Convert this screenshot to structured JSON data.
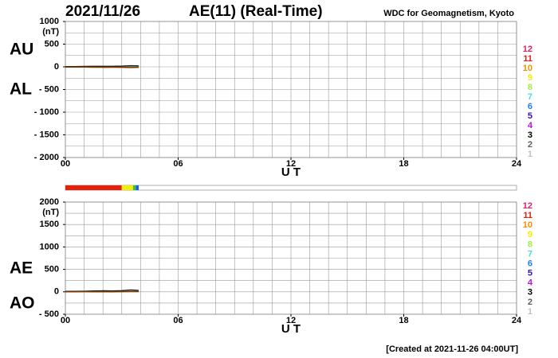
{
  "header": {
    "date": "2021/11/26",
    "title": "AE(11) (Real-Time)",
    "source": "WDC for Geomagnetism, Kyoto"
  },
  "footer": "[Created at 2021-11-26 04:00UT]",
  "coverage": {
    "xlim": [
      0,
      24
    ],
    "segments": [
      {
        "start": 0,
        "end": 3,
        "color": "#e8200a"
      },
      {
        "start": 3,
        "end": 3.6,
        "color": "#f0f000"
      },
      {
        "start": 3.6,
        "end": 3.75,
        "color": "#40c040"
      },
      {
        "start": 3.75,
        "end": 3.9,
        "color": "#2060e0"
      }
    ]
  },
  "chart_data": [
    {
      "type": "line",
      "unit": "(nT)",
      "xlabel": "U T",
      "xlim": [
        0,
        24
      ],
      "xticks": [
        {
          "value": 0,
          "label": "00"
        },
        {
          "value": 6,
          "label": "06"
        },
        12,
        18,
        24
      ],
      "ylim": [
        -2000,
        1000
      ],
      "yticks": [
        1000,
        500,
        0,
        {
          "value": -500,
          "label": "- 500"
        },
        {
          "value": -1000,
          "label": "- 1000"
        },
        {
          "value": -1500,
          "label": "- 1500"
        },
        {
          "value": -2000,
          "label": "- 2000"
        }
      ],
      "grid": true,
      "minor_grid_step": 250,
      "x_minor_step": 1,
      "series": [
        {
          "name": "AU",
          "color": "#222222",
          "x": [
            0,
            0.5,
            1,
            1.5,
            2,
            2.5,
            3,
            3.5,
            3.9
          ],
          "values": [
            5,
            5,
            8,
            10,
            12,
            10,
            15,
            25,
            20
          ]
        },
        {
          "name": "AL",
          "color": "#7a3a00",
          "x": [
            0,
            0.5,
            1,
            1.5,
            2,
            2.5,
            3,
            3.5,
            3.9
          ],
          "values": [
            -5,
            -5,
            -5,
            -8,
            -10,
            -8,
            -10,
            -15,
            -10
          ]
        }
      ],
      "station_legend": [
        {
          "label": "12",
          "color": "#e0206a"
        },
        {
          "label": "11",
          "color": "#e02010"
        },
        {
          "label": "10",
          "color": "#f09000"
        },
        {
          "label": "9",
          "color": "#f0f000"
        },
        {
          "label": "8",
          "color": "#a0f040"
        },
        {
          "label": "7",
          "color": "#40e0e0"
        },
        {
          "label": "6",
          "color": "#2080f0"
        },
        {
          "label": "5",
          "color": "#3010c0"
        },
        {
          "label": "4",
          "color": "#c010e0"
        },
        {
          "label": "3",
          "color": "#000000"
        },
        {
          "label": "2",
          "color": "#606060"
        },
        {
          "label": "1",
          "color": "#c0c0c0"
        }
      ]
    },
    {
      "type": "line",
      "unit": "(nT)",
      "xlabel": "U T",
      "xlim": [
        0,
        24
      ],
      "xticks": [
        {
          "value": 0,
          "label": "00"
        },
        {
          "value": 6,
          "label": "06"
        },
        12,
        18,
        24
      ],
      "ylim": [
        -500,
        2000
      ],
      "yticks": [
        2000,
        1500,
        1000,
        500,
        0,
        {
          "value": -500,
          "label": "- 500"
        }
      ],
      "grid": true,
      "minor_grid_step": 250,
      "x_minor_step": 1,
      "series": [
        {
          "name": "AE",
          "color": "#222222",
          "x": [
            0,
            0.5,
            1,
            1.5,
            2,
            2.5,
            3,
            3.5,
            3.9
          ],
          "values": [
            10,
            10,
            13,
            18,
            22,
            18,
            25,
            40,
            30
          ]
        },
        {
          "name": "AO",
          "color": "#7a3a00",
          "x": [
            0,
            0.5,
            1,
            1.5,
            2,
            2.5,
            3,
            3.5,
            3.9
          ],
          "values": [
            0,
            0,
            2,
            1,
            1,
            1,
            3,
            5,
            5
          ]
        }
      ],
      "station_legend": [
        {
          "label": "12",
          "color": "#e0206a"
        },
        {
          "label": "11",
          "color": "#e02010"
        },
        {
          "label": "10",
          "color": "#f09000"
        },
        {
          "label": "9",
          "color": "#f0f000"
        },
        {
          "label": "8",
          "color": "#a0f040"
        },
        {
          "label": "7",
          "color": "#40e0e0"
        },
        {
          "label": "6",
          "color": "#2080f0"
        },
        {
          "label": "5",
          "color": "#3010c0"
        },
        {
          "label": "4",
          "color": "#c010e0"
        },
        {
          "label": "3",
          "color": "#000000"
        },
        {
          "label": "2",
          "color": "#606060"
        },
        {
          "label": "1",
          "color": "#c0c0c0"
        }
      ]
    }
  ]
}
